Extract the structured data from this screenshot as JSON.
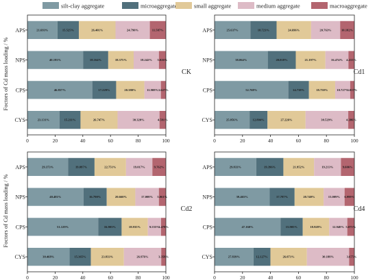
{
  "legend": [
    {
      "label": "silt-clay aggregate",
      "color": "#7f9aa3"
    },
    {
      "label": "microaggregate",
      "color": "#51707c"
    },
    {
      "label": "small aggregate",
      "color": "#e1c998"
    },
    {
      "label": "medium aggregate",
      "color": "#ddbbc6"
    },
    {
      "label": "macroaggregate",
      "color": "#b3656f"
    }
  ],
  "ylabel_top": "Foctors of Cd mass loading / %",
  "ylabel_bottom": "Foctors of Cd mass loading / %",
  "chart_data": [
    {
      "type": "bar",
      "orientation": "horizontal",
      "stacked": true,
      "panel_label": "CK",
      "categories": [
        "APS",
        "NPS",
        "CPS",
        "CYS"
      ],
      "xlim": [
        0,
        100
      ],
      "xticks": [
        0,
        20,
        40,
        60,
        80,
        100
      ],
      "series": [
        {
          "name": "silt-clay aggregate",
          "values": [
            21.693,
            40.193,
            46.857,
            23.131
          ]
        },
        {
          "name": "microaggregate",
          "values": [
            15.525,
            18.164,
            17.229,
            15.211
          ]
        },
        {
          "name": "small aggregate",
          "values": [
            26.401,
            18.375,
            20.38,
            26.747
          ]
        },
        {
          "name": "medium aggregate",
          "values": [
            24.79,
            18.242,
            11.908,
            30.32
          ]
        },
        {
          "name": "macroaggregate",
          "values": [
            11.587,
            5.026,
            3.627,
            4.591
          ]
        }
      ]
    },
    {
      "type": "bar",
      "orientation": "horizontal",
      "stacked": true,
      "panel_label": "Cd1",
      "categories": [
        "APS",
        "NPS",
        "CPS",
        "CYS"
      ],
      "xlim": [
        0,
        100
      ],
      "xticks": [
        0,
        20,
        40,
        60,
        80,
        100
      ],
      "series": [
        {
          "name": "silt-clay aggregate",
          "values": [
            25.637,
            38.064,
            52.768,
            25.056
          ]
        },
        {
          "name": "microaggregate",
          "values": [
            18.723,
            20.018,
            14.738,
            12.804
          ]
        },
        {
          "name": "small aggregate",
          "values": [
            24.696,
            21.197,
            18.75,
            27.226
          ]
        },
        {
          "name": "medium aggregate",
          "values": [
            20.763,
            16.474,
            10.727,
            30.529
          ]
        },
        {
          "name": "macroaggregate",
          "values": [
            10.182,
            4.215,
            3.017,
            4.386
          ]
        }
      ]
    },
    {
      "type": "bar",
      "orientation": "horizontal",
      "stacked": true,
      "panel_label": "Cd2",
      "categories": [
        "APS",
        "NPS",
        "CPS",
        "CYS"
      ],
      "xlim": [
        0,
        100
      ],
      "xticks": [
        0,
        20,
        40,
        60,
        80,
        100
      ],
      "series": [
        {
          "name": "silt-clay aggregate",
          "values": [
            29.373,
            40.481,
            51.129,
            30.468
          ]
        },
        {
          "name": "microaggregate",
          "values": [
            19.097,
            16.79,
            16.903,
            15.365
          ]
        },
        {
          "name": "small aggregate",
          "values": [
            22.751,
            20.66,
            18.935,
            23.833
          ]
        },
        {
          "name": "medium aggregate",
          "values": [
            19.017,
            17.008,
            9.555,
            26.976
          ]
        },
        {
          "name": "macroaggregate",
          "values": [
            9.762,
            5.061,
            3.478,
            3.358
          ]
        }
      ]
    },
    {
      "type": "bar",
      "orientation": "horizontal",
      "stacked": true,
      "panel_label": "Cd4",
      "categories": [
        "APS",
        "NPS",
        "CPS",
        "CYS"
      ],
      "xlim": [
        0,
        100
      ],
      "xticks": [
        0,
        20,
        40,
        60,
        80,
        100
      ],
      "series": [
        {
          "name": "silt-clay aggregate",
          "values": [
            29.833,
            39.465,
            47.16,
            27.839
          ]
        },
        {
          "name": "microaggregate",
          "values": [
            19.396,
            17.787,
            15.905,
            12.127
          ]
        },
        {
          "name": "small aggregate",
          "values": [
            21.952,
            20.74,
            18.928,
            26.071
          ]
        },
        {
          "name": "medium aggregate",
          "values": [
            19.213,
            15.009,
            12.948,
            30.188
          ]
        },
        {
          "name": "macroaggregate",
          "values": [
            9.606,
            6.999,
            5.075,
            3.675
          ]
        }
      ]
    }
  ]
}
